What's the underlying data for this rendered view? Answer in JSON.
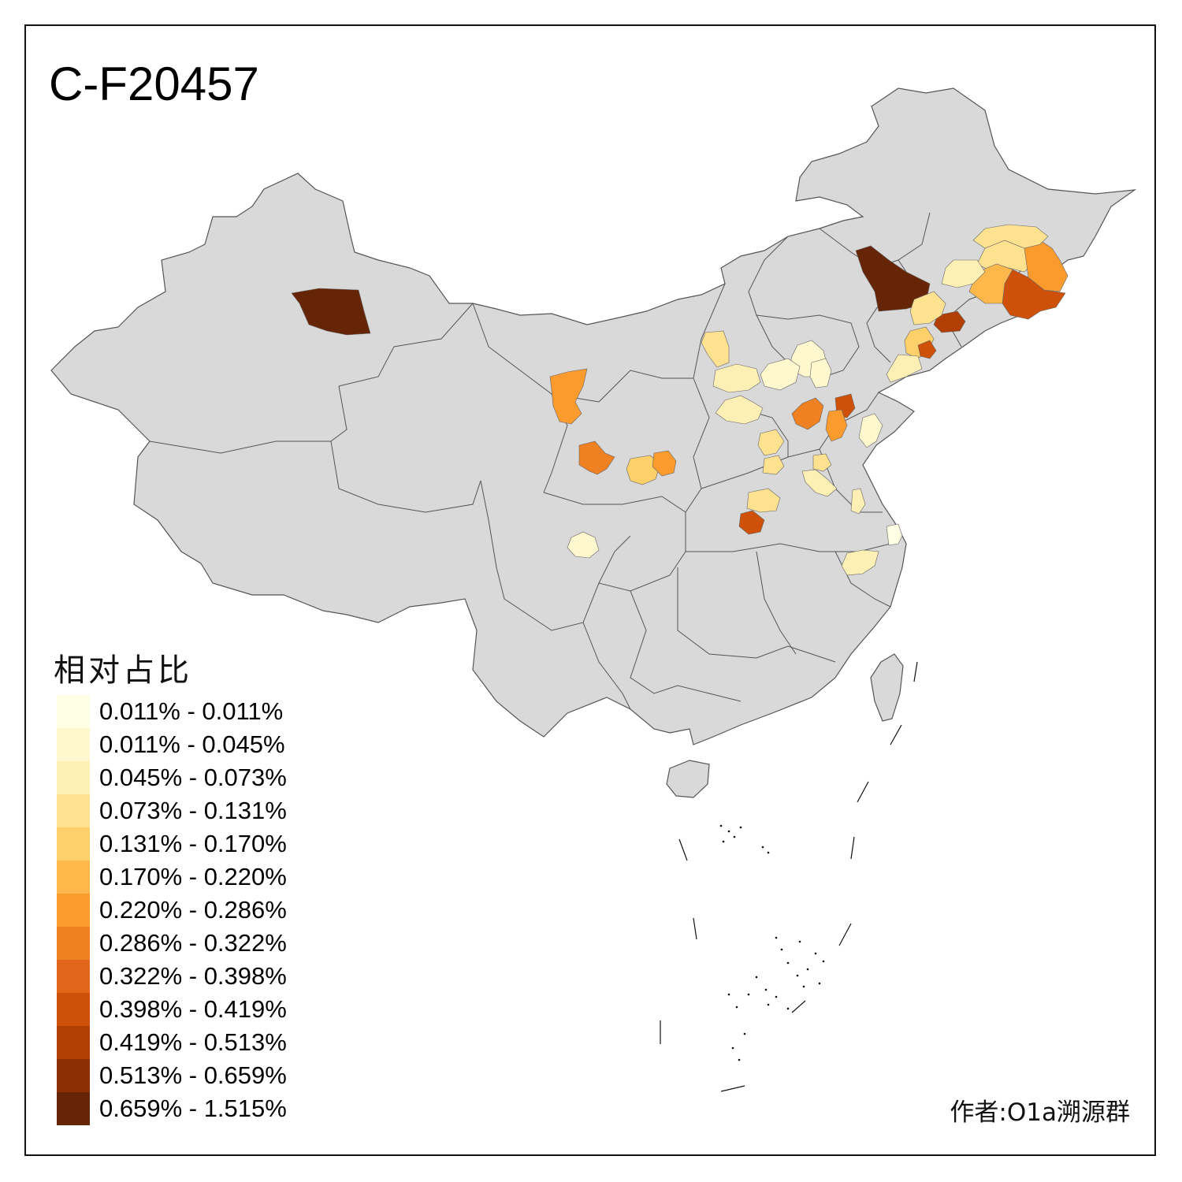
{
  "title": "C-F20457",
  "legend": {
    "title": "相对占比",
    "items": [
      {
        "label": "0.011% - 0.011%",
        "color": "#FFFFE5"
      },
      {
        "label": "0.011% - 0.045%",
        "color": "#FFF7CE"
      },
      {
        "label": "0.045% - 0.073%",
        "color": "#FEEFB5"
      },
      {
        "label": "0.073% - 0.131%",
        "color": "#FEE290"
      },
      {
        "label": "0.131% - 0.170%",
        "color": "#FED06A"
      },
      {
        "label": "0.170% - 0.220%",
        "color": "#FEB74A"
      },
      {
        "label": "0.220% - 0.286%",
        "color": "#FB9B2E"
      },
      {
        "label": "0.286% - 0.322%",
        "color": "#F08122"
      },
      {
        "label": "0.322% - 0.398%",
        "color": "#E2671A"
      },
      {
        "label": "0.398% - 0.419%",
        "color": "#CF5008"
      },
      {
        "label": "0.419% - 0.513%",
        "color": "#B13F04"
      },
      {
        "label": "0.513% - 0.659%",
        "color": "#8D2F05"
      },
      {
        "label": "0.659% - 1.515%",
        "color": "#662506"
      }
    ]
  },
  "author": "作者:O1a溯源群",
  "colors": {
    "land": "#D9D9D9",
    "border": "#555555",
    "frame": "#111111"
  }
}
